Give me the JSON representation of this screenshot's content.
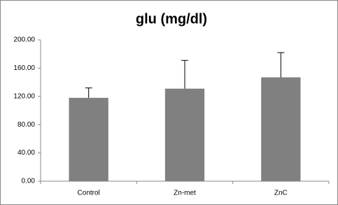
{
  "chart_data": {
    "type": "bar",
    "title": "glu (mg/dl)",
    "categories": [
      "Control",
      "Zn-met",
      "ZnC"
    ],
    "values": [
      118,
      131,
      147
    ],
    "errors": [
      14,
      40,
      35
    ],
    "color": "#808080",
    "ylim": [
      0,
      200
    ],
    "yticks": [
      {
        "value": 0,
        "label": "0.00"
      },
      {
        "value": 40,
        "label": "40.00"
      },
      {
        "value": 80,
        "label": "80.00"
      },
      {
        "value": 120,
        "label": "120.00"
      },
      {
        "value": 160,
        "label": "160.00"
      },
      {
        "value": 200,
        "label": "200.00"
      }
    ],
    "grid": false
  }
}
